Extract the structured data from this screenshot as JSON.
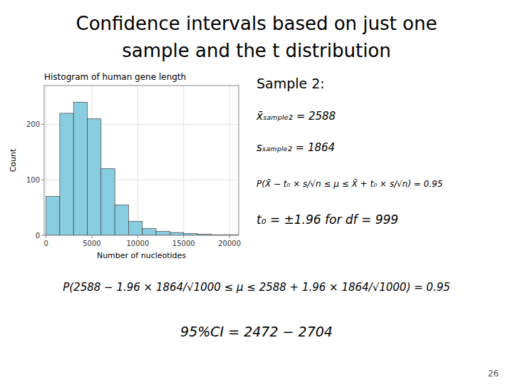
{
  "chart_data": {
    "type": "histogram",
    "title": "Histogram of human gene length",
    "x_label": "Number of nucleotides",
    "y_label": "Count",
    "bins": [
      0,
      1500,
      3000,
      4500,
      6000,
      7500,
      9000,
      10500,
      12000,
      13500,
      15000,
      16500,
      18000,
      19500,
      21000
    ],
    "values": [
      70,
      220,
      240,
      210,
      120,
      55,
      25,
      12,
      7,
      5,
      3,
      2,
      1,
      1
    ],
    "color": "#89CDE0",
    "xlim": [
      -200,
      21000
    ],
    "ylim": [
      0,
      270
    ],
    "xticks": [
      0,
      5000,
      10000,
      15000,
      20000
    ],
    "yticks": [
      0,
      100,
      200
    ],
    "grid": true,
    "annotations": [
      "Confidence intervals based on just one",
      "sample and the t distribution",
      "Sample 2:",
      "x̄ₛₐₘₚₗₑ₂ = 2588",
      "sₛₐₘₚₗₑ₂ = 1864",
      "P(X̄ − t₀ × s/√n ≤ μ ≤ X̄ + t₀ × s/√n) = 0.95",
      "t₀ = ±1.96 for df = 999",
      "P(2588 − 1.96 × 1864/√1000 ≤ μ ≤ 2588 + 1.96 × 1864/√1000) = 0.95",
      "95%CI = 2472 − 2704",
      "26"
    ]
  }
}
